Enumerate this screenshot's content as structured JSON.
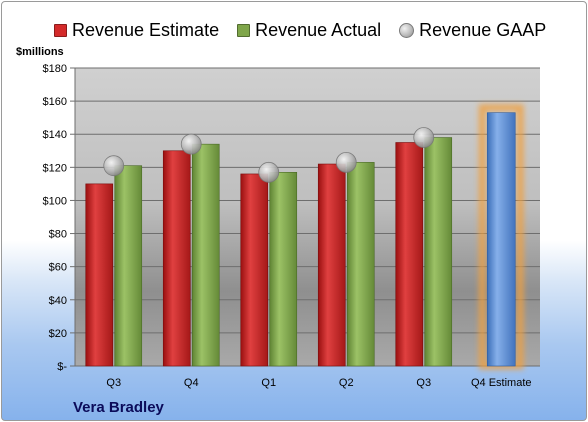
{
  "chart_data": {
    "type": "bar",
    "unit_label": "$millions",
    "footer": "Vera Bradley",
    "categories": [
      "Q3",
      "Q4",
      "Q1",
      "Q2",
      "Q3",
      "Q4 Estimate"
    ],
    "ylim": [
      0,
      180
    ],
    "y_ticks": [
      0,
      20,
      40,
      60,
      80,
      100,
      120,
      140,
      160,
      180
    ],
    "y_tick_labels": [
      "$-",
      "$20",
      "$40",
      "$60",
      "$80",
      "$100",
      "$120",
      "$140",
      "$160",
      "$180"
    ],
    "grid": true,
    "legend_position": "top",
    "series": [
      {
        "name": "Revenue Estimate",
        "kind": "bar",
        "color": "#d42a2a",
        "values": [
          110,
          130,
          116,
          122,
          135,
          null
        ]
      },
      {
        "name": "Revenue Actual",
        "kind": "bar",
        "color": "#7fa64a",
        "values": [
          121,
          134,
          117,
          123,
          138,
          null
        ]
      },
      {
        "name": "Revenue GAAP",
        "kind": "marker",
        "color": "#b8b8b8",
        "values": [
          121,
          134,
          117,
          123,
          138,
          null
        ]
      }
    ],
    "forecast": {
      "category": "Q4 Estimate",
      "value": 153,
      "color": "#5b8fd6",
      "glow_color": "#f0a040"
    }
  }
}
